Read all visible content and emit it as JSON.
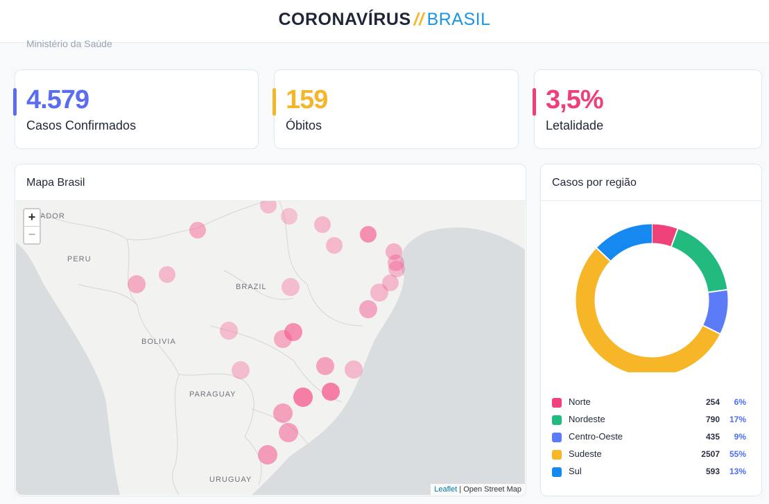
{
  "header": {
    "title_main": "CORONAVÍRUS",
    "title_sep": "//",
    "title_country": "BRASIL"
  },
  "source_text": "Ministério da Saúde",
  "stats": [
    {
      "value": "4.579",
      "label": "Casos Confirmados",
      "color": "#5a6cf0"
    },
    {
      "value": "159",
      "label": "Óbitos",
      "color": "#f4b72c"
    },
    {
      "value": "3,5%",
      "label": "Letalidade",
      "color": "#ee3f7a"
    }
  ],
  "map": {
    "title": "Mapa Brasil",
    "zoom_in": "+",
    "zoom_out": "−",
    "labels": {
      "ecuador": "ADOR",
      "peru": "PERU",
      "brazil": "BRAZIL",
      "bolivia": "BOLIVIA",
      "paraguay": "PARAGUAY",
      "uruguay": "URUGUAY"
    },
    "attribution_leaflet": "Leaflet",
    "attribution_rest": " | Open Street Map",
    "marker_color": "#f5578f"
  },
  "regions": {
    "title": "Casos por região",
    "items": [
      {
        "name": "Norte",
        "count": "254",
        "pct": "6%",
        "value": 254,
        "color": "#f0427a"
      },
      {
        "name": "Nordeste",
        "count": "790",
        "pct": "17%",
        "value": 790,
        "color": "#22ba7e"
      },
      {
        "name": "Centro-Oeste",
        "count": "435",
        "pct": "9%",
        "value": 435,
        "color": "#5b7cf6"
      },
      {
        "name": "Sudeste",
        "count": "2507",
        "pct": "55%",
        "value": 2507,
        "color": "#f7b627"
      },
      {
        "name": "Sul",
        "count": "593",
        "pct": "13%",
        "value": 593,
        "color": "#1689f0"
      }
    ]
  }
}
